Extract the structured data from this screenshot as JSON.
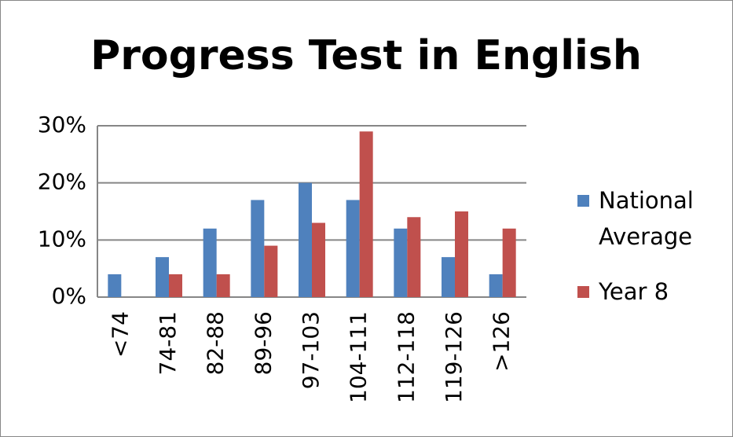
{
  "chart_data": {
    "type": "bar",
    "title": "Progress Test in English",
    "categories": [
      "<74",
      "74-81",
      "82-88",
      "89-96",
      "97-103",
      "104-111",
      "112-118",
      "119-126",
      ">126"
    ],
    "series": [
      {
        "name": "National Average",
        "color": "#4f81bd",
        "values": [
          4,
          7,
          12,
          17,
          20,
          17,
          12,
          7,
          4
        ]
      },
      {
        "name": "Year 8",
        "color": "#c0504d",
        "values": [
          0,
          4,
          4,
          9,
          13,
          29,
          14,
          15,
          12
        ]
      }
    ],
    "ylim": [
      0,
      30
    ],
    "yticks": [
      {
        "value": 0,
        "label": "0%"
      },
      {
        "value": 10,
        "label": "10%"
      },
      {
        "value": 20,
        "label": "20%"
      },
      {
        "value": 30,
        "label": "30%"
      }
    ],
    "grid": true,
    "legend": "right"
  }
}
